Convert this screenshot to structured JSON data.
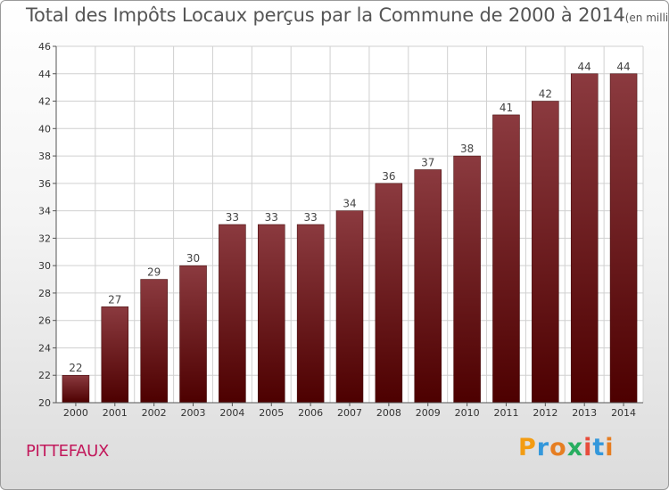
{
  "header": {
    "title": "Total des Impôts Locaux perçus par la Commune de 2000 à 2014",
    "unit": "(en milliers d'€)"
  },
  "commune": "PITTEFAUX",
  "logo": {
    "letters": [
      "P",
      "r",
      "o",
      "x",
      "i",
      "t",
      "i"
    ],
    "colors": [
      "#f39c12",
      "#3498db",
      "#e67e22",
      "#27ae60",
      "#e74c3c",
      "#3498db",
      "#e67e22"
    ]
  },
  "chart_data": {
    "type": "bar",
    "title": "Total des Impôts Locaux perçus par la Commune de 2000 à 2014",
    "xlabel": "",
    "ylabel": "",
    "categories": [
      "2000",
      "2001",
      "2002",
      "2003",
      "2004",
      "2005",
      "2006",
      "2007",
      "2008",
      "2009",
      "2010",
      "2011",
      "2012",
      "2013",
      "2014"
    ],
    "values": [
      22,
      27,
      29,
      30,
      33,
      33,
      33,
      34,
      36,
      37,
      38,
      41,
      42,
      44,
      44
    ],
    "ylim": [
      20,
      46
    ],
    "yticks": [
      20,
      22,
      24,
      26,
      28,
      30,
      32,
      34,
      36,
      38,
      40,
      42,
      44,
      46
    ],
    "grid": true,
    "bar_color_top": "#8b3a3f",
    "bar_color_bottom": "#4d0000"
  }
}
